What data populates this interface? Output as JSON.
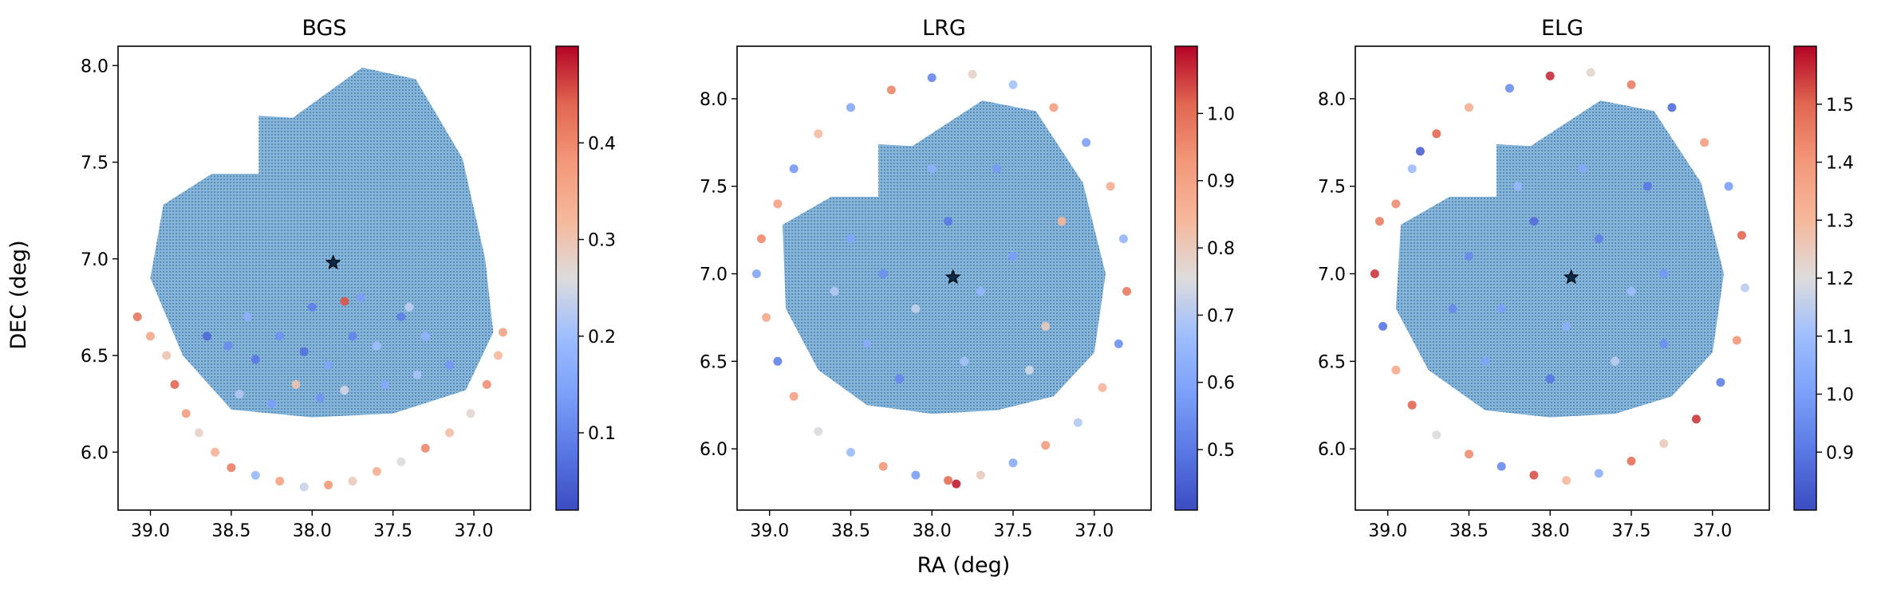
{
  "figure": {
    "xlabel": "RA (deg)",
    "ylabel": "DEC (deg)"
  },
  "chart_data": [
    {
      "type": "scatter",
      "title": "BGS",
      "xlim": [
        39.2,
        36.65
      ],
      "ylim": [
        5.7,
        8.1
      ],
      "x_ticks": [
        39.0,
        38.5,
        38.0,
        37.5,
        37.0
      ],
      "x_tick_labels": [
        "39.0",
        "38.5",
        "38.0",
        "37.5",
        "37.0"
      ],
      "y_ticks": [
        6.0,
        6.5,
        7.0,
        7.5,
        8.0
      ],
      "y_tick_labels": [
        "6.0",
        "6.5",
        "7.0",
        "7.5",
        "8.0"
      ],
      "center_marker": {
        "x": 37.87,
        "y": 6.98
      },
      "background_density": {
        "color": "#1f77b4",
        "footprint": [
          [
            38.92,
            7.28
          ],
          [
            38.62,
            7.44
          ],
          [
            38.33,
            7.44
          ],
          [
            38.33,
            7.74
          ],
          [
            38.12,
            7.73
          ],
          [
            37.69,
            7.99
          ],
          [
            37.36,
            7.93
          ],
          [
            37.07,
            7.52
          ],
          [
            36.93,
            7.0
          ],
          [
            36.88,
            6.62
          ],
          [
            37.05,
            6.32
          ],
          [
            37.5,
            6.2
          ],
          [
            38.0,
            6.18
          ],
          [
            38.5,
            6.22
          ],
          [
            38.8,
            6.5
          ],
          [
            39.0,
            6.9
          ]
        ]
      },
      "colorbar": {
        "colormap": "coolwarm",
        "range": [
          0.02,
          0.5
        ],
        "ticks": [
          0.1,
          0.2,
          0.3,
          0.4
        ],
        "tick_labels": [
          "0.1",
          "0.2",
          "0.3",
          "0.4"
        ]
      },
      "points": [
        {
          "x": 38.52,
          "y": 6.55,
          "z": 0.11
        },
        {
          "x": 38.35,
          "y": 6.48,
          "z": 0.08
        },
        {
          "x": 38.2,
          "y": 6.6,
          "z": 0.12
        },
        {
          "x": 38.05,
          "y": 6.52,
          "z": 0.07
        },
        {
          "x": 37.9,
          "y": 6.45,
          "z": 0.15
        },
        {
          "x": 37.75,
          "y": 6.6,
          "z": 0.1
        },
        {
          "x": 37.6,
          "y": 6.55,
          "z": 0.2
        },
        {
          "x": 37.45,
          "y": 6.7,
          "z": 0.09
        },
        {
          "x": 37.3,
          "y": 6.6,
          "z": 0.18
        },
        {
          "x": 38.45,
          "y": 6.3,
          "z": 0.22
        },
        {
          "x": 38.25,
          "y": 6.25,
          "z": 0.14
        },
        {
          "x": 38.1,
          "y": 6.35,
          "z": 0.3
        },
        {
          "x": 37.95,
          "y": 6.28,
          "z": 0.12
        },
        {
          "x": 37.8,
          "y": 6.32,
          "z": 0.25
        },
        {
          "x": 37.55,
          "y": 6.35,
          "z": 0.16
        },
        {
          "x": 37.35,
          "y": 6.4,
          "z": 0.21
        },
        {
          "x": 37.15,
          "y": 6.45,
          "z": 0.13
        },
        {
          "x": 39.08,
          "y": 6.7,
          "z": 0.42
        },
        {
          "x": 39.0,
          "y": 6.6,
          "z": 0.35
        },
        {
          "x": 38.9,
          "y": 6.5,
          "z": 0.3
        },
        {
          "x": 38.85,
          "y": 6.35,
          "z": 0.44
        },
        {
          "x": 38.78,
          "y": 6.2,
          "z": 0.37
        },
        {
          "x": 38.7,
          "y": 6.1,
          "z": 0.28
        },
        {
          "x": 38.6,
          "y": 6.0,
          "z": 0.33
        },
        {
          "x": 38.5,
          "y": 5.92,
          "z": 0.41
        },
        {
          "x": 38.35,
          "y": 5.88,
          "z": 0.19
        },
        {
          "x": 38.2,
          "y": 5.85,
          "z": 0.36
        },
        {
          "x": 38.05,
          "y": 5.82,
          "z": 0.24
        },
        {
          "x": 37.9,
          "y": 5.83,
          "z": 0.38
        },
        {
          "x": 37.75,
          "y": 5.85,
          "z": 0.29
        },
        {
          "x": 37.6,
          "y": 5.9,
          "z": 0.34
        },
        {
          "x": 37.45,
          "y": 5.95,
          "z": 0.26
        },
        {
          "x": 37.3,
          "y": 6.02,
          "z": 0.4
        },
        {
          "x": 37.15,
          "y": 6.1,
          "z": 0.31
        },
        {
          "x": 37.02,
          "y": 6.2,
          "z": 0.27
        },
        {
          "x": 36.92,
          "y": 6.35,
          "z": 0.39
        },
        {
          "x": 36.85,
          "y": 6.5,
          "z": 0.32
        },
        {
          "x": 36.82,
          "y": 6.62,
          "z": 0.36
        },
        {
          "x": 38.65,
          "y": 6.6,
          "z": 0.06
        },
        {
          "x": 38.4,
          "y": 6.7,
          "z": 0.17
        },
        {
          "x": 38.0,
          "y": 6.75,
          "z": 0.09
        },
        {
          "x": 37.7,
          "y": 6.8,
          "z": 0.14
        },
        {
          "x": 37.4,
          "y": 6.75,
          "z": 0.23
        },
        {
          "x": 37.8,
          "y": 6.78,
          "z": 0.45
        }
      ]
    },
    {
      "type": "scatter",
      "title": "LRG",
      "xlim": [
        39.2,
        36.65
      ],
      "ylim": [
        5.65,
        8.3
      ],
      "x_ticks": [
        39.0,
        38.5,
        38.0,
        37.5,
        37.0
      ],
      "x_tick_labels": [
        "39.0",
        "38.5",
        "38.0",
        "37.5",
        "37.0"
      ],
      "y_ticks": [
        6.0,
        6.5,
        7.0,
        7.5,
        8.0
      ],
      "y_tick_labels": [
        "6.0",
        "6.5",
        "7.0",
        "7.5",
        "8.0"
      ],
      "center_marker": {
        "x": 37.87,
        "y": 6.98
      },
      "background_density": {
        "color": "#1f77b4",
        "footprint": [
          [
            38.92,
            7.28
          ],
          [
            38.62,
            7.44
          ],
          [
            38.33,
            7.44
          ],
          [
            38.33,
            7.74
          ],
          [
            38.12,
            7.73
          ],
          [
            37.69,
            7.99
          ],
          [
            37.36,
            7.93
          ],
          [
            37.07,
            7.52
          ],
          [
            36.93,
            7.0
          ],
          [
            37.0,
            6.55
          ],
          [
            37.25,
            6.3
          ],
          [
            37.6,
            6.22
          ],
          [
            38.0,
            6.2
          ],
          [
            38.4,
            6.25
          ],
          [
            38.7,
            6.45
          ],
          [
            38.9,
            6.8
          ]
        ]
      },
      "colorbar": {
        "colormap": "coolwarm",
        "range": [
          0.41,
          1.1
        ],
        "ticks": [
          0.5,
          0.6,
          0.7,
          0.8,
          0.9,
          1.0
        ],
        "tick_labels": [
          "0.5",
          "0.6",
          "0.7",
          "0.8",
          "0.9",
          "1.0"
        ]
      },
      "points": [
        {
          "x": 38.5,
          "y": 7.2,
          "z": 0.6
        },
        {
          "x": 38.3,
          "y": 7.0,
          "z": 0.55
        },
        {
          "x": 38.1,
          "y": 6.8,
          "z": 0.72
        },
        {
          "x": 37.9,
          "y": 7.3,
          "z": 0.5
        },
        {
          "x": 37.7,
          "y": 6.9,
          "z": 0.65
        },
        {
          "x": 37.5,
          "y": 7.1,
          "z": 0.58
        },
        {
          "x": 37.3,
          "y": 6.7,
          "z": 0.8
        },
        {
          "x": 38.4,
          "y": 6.6,
          "z": 0.62
        },
        {
          "x": 38.2,
          "y": 6.4,
          "z": 0.53
        },
        {
          "x": 37.8,
          "y": 6.5,
          "z": 0.68
        },
        {
          "x": 37.4,
          "y": 6.45,
          "z": 0.74
        },
        {
          "x": 37.6,
          "y": 7.6,
          "z": 0.57
        },
        {
          "x": 38.0,
          "y": 7.6,
          "z": 0.63
        },
        {
          "x": 37.2,
          "y": 7.3,
          "z": 0.85
        },
        {
          "x": 38.6,
          "y": 6.9,
          "z": 0.7
        },
        {
          "x": 39.05,
          "y": 7.2,
          "z": 0.95
        },
        {
          "x": 39.08,
          "y": 7.0,
          "z": 0.6
        },
        {
          "x": 39.02,
          "y": 6.75,
          "z": 0.88
        },
        {
          "x": 38.95,
          "y": 6.5,
          "z": 0.52
        },
        {
          "x": 38.85,
          "y": 6.3,
          "z": 0.9
        },
        {
          "x": 38.7,
          "y": 6.1,
          "z": 0.75
        },
        {
          "x": 38.5,
          "y": 5.98,
          "z": 0.66
        },
        {
          "x": 38.3,
          "y": 5.9,
          "z": 0.93
        },
        {
          "x": 38.1,
          "y": 5.85,
          "z": 0.58
        },
        {
          "x": 37.9,
          "y": 5.82,
          "z": 1.0
        },
        {
          "x": 37.7,
          "y": 5.85,
          "z": 0.8
        },
        {
          "x": 37.5,
          "y": 5.92,
          "z": 0.62
        },
        {
          "x": 37.3,
          "y": 6.02,
          "z": 0.92
        },
        {
          "x": 37.1,
          "y": 6.15,
          "z": 0.7
        },
        {
          "x": 36.95,
          "y": 6.35,
          "z": 0.85
        },
        {
          "x": 36.85,
          "y": 6.6,
          "z": 0.55
        },
        {
          "x": 36.8,
          "y": 6.9,
          "z": 0.98
        },
        {
          "x": 36.82,
          "y": 7.2,
          "z": 0.64
        },
        {
          "x": 36.9,
          "y": 7.5,
          "z": 0.87
        },
        {
          "x": 37.05,
          "y": 7.75,
          "z": 0.59
        },
        {
          "x": 37.25,
          "y": 7.95,
          "z": 0.91
        },
        {
          "x": 37.5,
          "y": 8.08,
          "z": 0.68
        },
        {
          "x": 37.75,
          "y": 8.14,
          "z": 0.78
        },
        {
          "x": 38.0,
          "y": 8.12,
          "z": 0.53
        },
        {
          "x": 38.25,
          "y": 8.05,
          "z": 0.96
        },
        {
          "x": 38.5,
          "y": 7.95,
          "z": 0.61
        },
        {
          "x": 38.7,
          "y": 7.8,
          "z": 0.83
        },
        {
          "x": 38.85,
          "y": 7.6,
          "z": 0.57
        },
        {
          "x": 38.95,
          "y": 7.4,
          "z": 0.9
        },
        {
          "x": 37.85,
          "y": 5.8,
          "z": 1.08
        }
      ]
    },
    {
      "type": "scatter",
      "title": "ELG",
      "xlim": [
        39.2,
        36.65
      ],
      "ylim": [
        5.65,
        8.3
      ],
      "x_ticks": [
        39.0,
        38.5,
        38.0,
        37.5,
        37.0
      ],
      "x_tick_labels": [
        "39.0",
        "38.5",
        "38.0",
        "37.5",
        "37.0"
      ],
      "y_ticks": [
        6.0,
        6.5,
        7.0,
        7.5,
        8.0
      ],
      "y_tick_labels": [
        "6.0",
        "6.5",
        "7.0",
        "7.5",
        "8.0"
      ],
      "center_marker": {
        "x": 37.87,
        "y": 6.98
      },
      "background_density": {
        "color": "#1f77b4",
        "footprint": [
          [
            38.92,
            7.28
          ],
          [
            38.62,
            7.44
          ],
          [
            38.33,
            7.44
          ],
          [
            38.33,
            7.74
          ],
          [
            38.12,
            7.73
          ],
          [
            37.69,
            7.99
          ],
          [
            37.36,
            7.93
          ],
          [
            37.07,
            7.52
          ],
          [
            36.93,
            7.0
          ],
          [
            37.0,
            6.55
          ],
          [
            37.25,
            6.3
          ],
          [
            37.6,
            6.2
          ],
          [
            38.0,
            6.18
          ],
          [
            38.4,
            6.22
          ],
          [
            38.75,
            6.45
          ],
          [
            38.95,
            6.8
          ]
        ]
      },
      "colorbar": {
        "colormap": "coolwarm",
        "range": [
          0.8,
          1.6
        ],
        "ticks": [
          0.9,
          1.0,
          1.1,
          1.2,
          1.3,
          1.4,
          1.5
        ],
        "tick_labels": [
          "0.9",
          "1.0",
          "1.1",
          "1.2",
          "1.3",
          "1.4",
          "1.5"
        ]
      },
      "points": [
        {
          "x": 38.5,
          "y": 7.1,
          "z": 0.95
        },
        {
          "x": 38.3,
          "y": 6.8,
          "z": 1.0
        },
        {
          "x": 38.1,
          "y": 7.3,
          "z": 0.88
        },
        {
          "x": 37.9,
          "y": 6.7,
          "z": 1.05
        },
        {
          "x": 37.7,
          "y": 7.2,
          "z": 0.92
        },
        {
          "x": 37.5,
          "y": 6.9,
          "z": 1.1
        },
        {
          "x": 37.3,
          "y": 7.0,
          "z": 0.98
        },
        {
          "x": 38.4,
          "y": 6.5,
          "z": 1.02
        },
        {
          "x": 38.0,
          "y": 6.4,
          "z": 0.9
        },
        {
          "x": 37.6,
          "y": 6.5,
          "z": 1.15
        },
        {
          "x": 37.3,
          "y": 6.6,
          "z": 0.96
        },
        {
          "x": 37.8,
          "y": 7.6,
          "z": 1.03
        },
        {
          "x": 37.4,
          "y": 7.5,
          "z": 0.9
        },
        {
          "x": 38.2,
          "y": 7.5,
          "z": 1.08
        },
        {
          "x": 38.6,
          "y": 6.8,
          "z": 0.94
        },
        {
          "x": 39.05,
          "y": 7.3,
          "z": 1.45
        },
        {
          "x": 39.08,
          "y": 7.0,
          "z": 1.55
        },
        {
          "x": 39.03,
          "y": 6.7,
          "z": 0.9
        },
        {
          "x": 38.95,
          "y": 6.45,
          "z": 1.35
        },
        {
          "x": 38.85,
          "y": 6.25,
          "z": 1.5
        },
        {
          "x": 38.7,
          "y": 6.08,
          "z": 1.2
        },
        {
          "x": 38.5,
          "y": 5.97,
          "z": 1.42
        },
        {
          "x": 38.3,
          "y": 5.9,
          "z": 0.95
        },
        {
          "x": 38.1,
          "y": 5.85,
          "z": 1.52
        },
        {
          "x": 37.9,
          "y": 5.82,
          "z": 1.3
        },
        {
          "x": 37.7,
          "y": 5.86,
          "z": 1.05
        },
        {
          "x": 37.5,
          "y": 5.93,
          "z": 1.48
        },
        {
          "x": 37.3,
          "y": 6.03,
          "z": 1.25
        },
        {
          "x": 37.1,
          "y": 6.17,
          "z": 1.55
        },
        {
          "x": 36.95,
          "y": 6.38,
          "z": 0.92
        },
        {
          "x": 36.85,
          "y": 6.62,
          "z": 1.4
        },
        {
          "x": 36.8,
          "y": 6.92,
          "z": 1.15
        },
        {
          "x": 36.82,
          "y": 7.22,
          "z": 1.5
        },
        {
          "x": 36.9,
          "y": 7.5,
          "z": 1.0
        },
        {
          "x": 37.05,
          "y": 7.75,
          "z": 1.38
        },
        {
          "x": 37.25,
          "y": 7.95,
          "z": 0.88
        },
        {
          "x": 37.5,
          "y": 8.08,
          "z": 1.45
        },
        {
          "x": 37.75,
          "y": 8.15,
          "z": 1.22
        },
        {
          "x": 38.0,
          "y": 8.13,
          "z": 1.56
        },
        {
          "x": 38.25,
          "y": 8.06,
          "z": 0.96
        },
        {
          "x": 38.5,
          "y": 7.95,
          "z": 1.33
        },
        {
          "x": 38.7,
          "y": 7.8,
          "z": 1.5
        },
        {
          "x": 38.85,
          "y": 7.6,
          "z": 1.1
        },
        {
          "x": 38.95,
          "y": 7.4,
          "z": 1.42
        },
        {
          "x": 38.8,
          "y": 7.7,
          "z": 0.85
        }
      ]
    }
  ]
}
